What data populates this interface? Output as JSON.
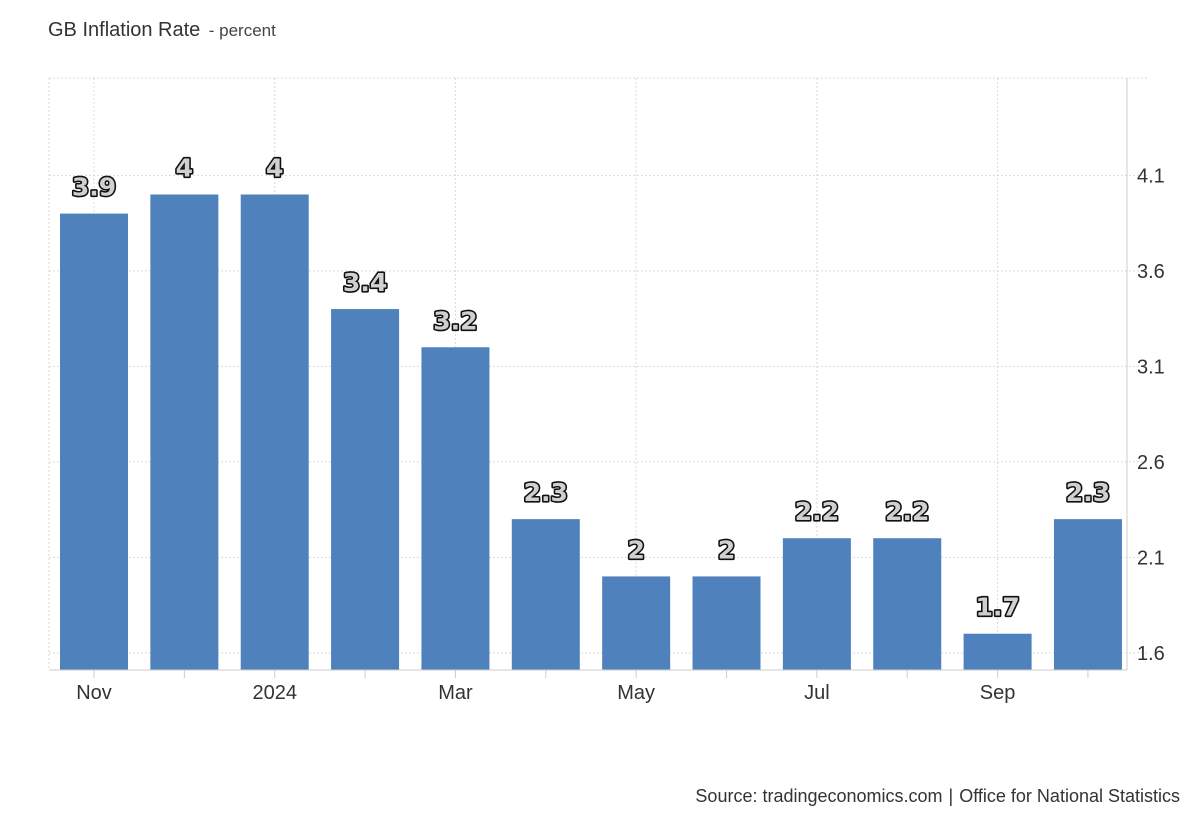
{
  "header": {
    "title": "GB Inflation Rate",
    "subtitle": "- percent"
  },
  "footer": {
    "source_prefix": "Source: tradingeconomics.com",
    "separator": "|",
    "source_agency": "Office for National Statistics"
  },
  "colors": {
    "bar": "#4f81bd",
    "grid": "#d9d9d9",
    "axis": "#cccccc",
    "text": "#333333"
  },
  "chart_data": {
    "type": "bar",
    "title": "GB Inflation Rate",
    "subtitle": "- percent",
    "xlabel": "",
    "ylabel": "",
    "categories": [
      "2023-11",
      "2023-12",
      "2024-01",
      "2024-02",
      "2024-03",
      "2024-04",
      "2024-05",
      "2024-06",
      "2024-07",
      "2024-08",
      "2024-09",
      "2024-10"
    ],
    "values": [
      3.9,
      4,
      4,
      3.4,
      3.2,
      2.3,
      2,
      2,
      2.2,
      2.2,
      1.7,
      2.3
    ],
    "data_labels": [
      "3.9",
      "4",
      "4",
      "3.4",
      "3.2",
      "2.3",
      "2",
      "2",
      "2.2",
      "2.2",
      "1.7",
      "2.3"
    ],
    "x_tick_labels": [
      {
        "index": 0,
        "label": "Nov"
      },
      {
        "index": 2,
        "label": "2024"
      },
      {
        "index": 4,
        "label": "Mar"
      },
      {
        "index": 6,
        "label": "May"
      },
      {
        "index": 8,
        "label": "Jul"
      },
      {
        "index": 10,
        "label": "Sep"
      }
    ],
    "y_ticks": [
      1.6,
      2.1,
      2.6,
      3.1,
      3.6,
      4.1
    ],
    "ylim": [
      1.51,
      4.61
    ],
    "y_axis_position": "right",
    "grid": true,
    "legend": "none"
  }
}
